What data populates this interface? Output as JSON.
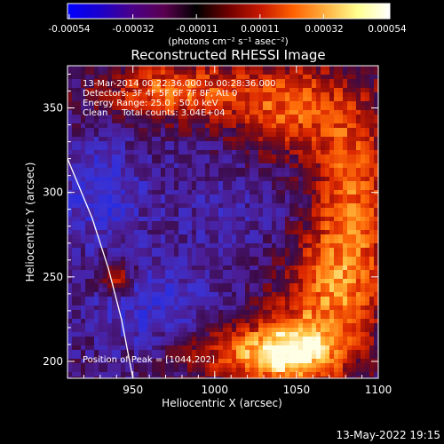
{
  "colorbar": {
    "ticks": [
      "-0.00054",
      "-0.00032",
      "-0.00011",
      "0.00011",
      "0.00032",
      "0.00054"
    ],
    "unit_label": "(photons cm⁻² s⁻¹ asec⁻²)",
    "colors": [
      "#0000ff",
      "#1a00cc",
      "#4a0088",
      "#5a0050",
      "#000000",
      "#700000",
      "#c81800",
      "#ff6000",
      "#ffb040",
      "#ffff90",
      "#ffffff"
    ]
  },
  "chart_data": {
    "type": "heatmap",
    "title": "Reconstructed RHESSI Image",
    "xlabel": "Heliocentric X (arcsec)",
    "ylabel": "Heliocentric Y (arcsec)",
    "xlim": [
      910,
      1100
    ],
    "ylim": [
      190,
      375
    ],
    "xticks": [
      950,
      1000,
      1050,
      1100
    ],
    "yticks": [
      200,
      250,
      300,
      350
    ],
    "colorbar_range": [
      -0.00054,
      0.00054
    ],
    "peak": [
      1044,
      202
    ],
    "limb_curve": [
      [
        910,
        320
      ],
      [
        925,
        285
      ],
      [
        935,
        255
      ],
      [
        943,
        225
      ],
      [
        950,
        190
      ]
    ],
    "annotations": [
      "13-Mar-2014 00:22:36.000 to 00:28:36.000",
      "Detectors: 3F 4F 5F 6F 7F 8F, Att 0",
      "Energy Range: 25.0 - 50.0 keV",
      "Clean     Total counts: 3.04E+04"
    ],
    "peak_label": "Position of Peak = [1044,202]"
  },
  "footer_timestamp": "13-May-2022 19:15"
}
